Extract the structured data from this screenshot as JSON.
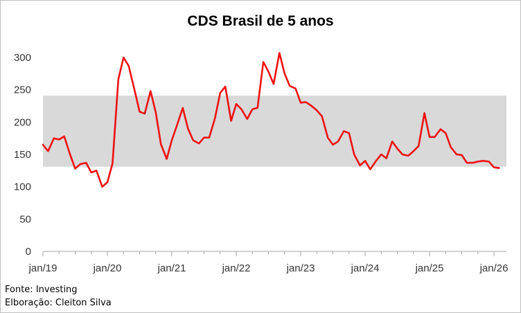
{
  "chart_data": {
    "type": "line",
    "title": "CDS Brasil de 5 anos",
    "xlabel": "",
    "ylabel": "",
    "ylim": [
      0,
      300
    ],
    "yticks": [
      0,
      50,
      100,
      150,
      200,
      250,
      300
    ],
    "xticks": [
      {
        "label": "jan/19",
        "x": 2019.0
      },
      {
        "label": "jan/20",
        "x": 2020.0
      },
      {
        "label": "jan/21",
        "x": 2021.0
      },
      {
        "label": "jan/22",
        "x": 2022.0
      },
      {
        "label": "jan/23",
        "x": 2023.0
      },
      {
        "label": "jan/24",
        "x": 2024.0
      },
      {
        "label": "jan/25",
        "x": 2025.0
      },
      {
        "label": "jan/26",
        "x": 2026.0
      }
    ],
    "band": {
      "low": 131,
      "high": 241,
      "color": "#d9d9d9"
    },
    "line_color": "#ee1111",
    "grid": false,
    "series": [
      {
        "x": [
          2019.0,
          2019.08,
          2019.17,
          2019.25,
          2019.33,
          2019.42,
          2019.5,
          2019.58,
          2019.67,
          2019.75,
          2019.83,
          2019.92,
          2020.0,
          2020.08,
          2020.17,
          2020.25,
          2020.33,
          2020.42,
          2020.5,
          2020.58,
          2020.67,
          2020.75,
          2020.83,
          2020.92,
          2021.0,
          2021.08,
          2021.17,
          2021.25,
          2021.33,
          2021.42,
          2021.5,
          2021.58,
          2021.67,
          2021.75,
          2021.83,
          2021.92,
          2022.0,
          2022.08,
          2022.17,
          2022.25,
          2022.33,
          2022.42,
          2022.5,
          2022.58,
          2022.67,
          2022.75,
          2022.83,
          2022.92,
          2023.0,
          2023.08,
          2023.17,
          2023.25,
          2023.33,
          2023.42,
          2023.5,
          2023.58,
          2023.67,
          2023.75,
          2023.83,
          2023.92,
          2024.0,
          2024.08,
          2024.17,
          2024.25,
          2024.33,
          2024.42,
          2024.5,
          2024.58,
          2024.67,
          2024.75,
          2024.83,
          2024.92,
          2025.0,
          2025.08,
          2025.17,
          2025.25,
          2025.33,
          2025.42,
          2025.5,
          2025.58,
          2025.67,
          2025.75,
          2025.83,
          2025.92,
          2026.0,
          2026.08
        ],
        "values": [
          165,
          155,
          175,
          173,
          178,
          150,
          128,
          135,
          137,
          122,
          125,
          100,
          107,
          136,
          266,
          300,
          287,
          250,
          216,
          213,
          248,
          215,
          166,
          143,
          172,
          195,
          222,
          190,
          172,
          167,
          176,
          176,
          206,
          245,
          255,
          202,
          228,
          220,
          205,
          220,
          222,
          293,
          278,
          259,
          307,
          275,
          256,
          252,
          230,
          231,
          225,
          218,
          209,
          176,
          165,
          170,
          186,
          183,
          150,
          133,
          140,
          127,
          140,
          150,
          144,
          170,
          159,
          150,
          148,
          155,
          163,
          214,
          177,
          177,
          189,
          183,
          161,
          150,
          149,
          137,
          137,
          139,
          140,
          139,
          130,
          129
        ]
      }
    ]
  },
  "footer": {
    "source": "Fonte: Investing",
    "author": "Elboração: Cleiton Silva"
  }
}
